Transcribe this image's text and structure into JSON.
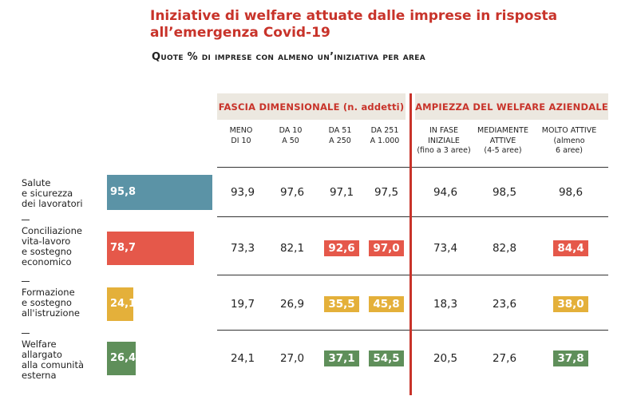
{
  "title": "Iniziative di welfare attuate dalle imprese in risposta all’emergenza Covid-19",
  "subtitle": "Quote % di imprese con almeno un’iniziativa per area",
  "groups": {
    "size": "FASCIA DIMENSIONALE (n. addetti)",
    "welfare": "AMPIEZZA DEL WELFARE AZIENDALE"
  },
  "columns": [
    [
      "MENO",
      "DI 10"
    ],
    [
      "DA 10",
      "A 50"
    ],
    [
      "DA 51",
      "A 250"
    ],
    [
      "DA 251",
      "A 1.000"
    ],
    [
      "IN FASE",
      "INIZIALE",
      "(fino a 3 aree)"
    ],
    [
      "MEDIAMENTE",
      "ATTIVE",
      "(4-5 aree)"
    ],
    [
      "MOLTO ATTIVE",
      "(almeno",
      "6 aree)"
    ]
  ],
  "colors": {
    "Salute e sicurezza dei lavoratori": "#5b93a6",
    "Conciliazione vita-lavoro e sostegno economico": "#e5584a",
    "Formazione e sostegno all'istruzione": "#e4b03a",
    "Welfare allargato alla comunità esterna": "#5f8f5a",
    "accent": "#c8332a",
    "header_bg": "#ece8e0"
  },
  "rows": [
    {
      "label": [
        "Salute",
        "e sicurezza",
        "dei lavoratori"
      ],
      "total": "95,8",
      "cells": [
        "93,9",
        "97,6",
        "97,1",
        "97,5",
        "94,6",
        "98,5",
        "98,6"
      ],
      "highlight": [
        false,
        false,
        false,
        false,
        false,
        false,
        false
      ]
    },
    {
      "label": [
        "Conciliazione",
        "vita-lavoro",
        "e sostegno",
        "economico"
      ],
      "total": "78,7",
      "cells": [
        "73,3",
        "82,1",
        "92,6",
        "97,0",
        "73,4",
        "82,8",
        "84,4"
      ],
      "highlight": [
        false,
        false,
        true,
        true,
        false,
        false,
        true
      ]
    },
    {
      "label": [
        "Formazione",
        "e sostegno",
        "all'istruzione"
      ],
      "total": "24,1",
      "cells": [
        "19,7",
        "26,9",
        "35,5",
        "45,8",
        "18,3",
        "23,6",
        "38,0"
      ],
      "highlight": [
        false,
        false,
        true,
        true,
        false,
        false,
        true
      ]
    },
    {
      "label": [
        "Welfare allargato",
        "alla comunità",
        "esterna"
      ],
      "total": "26,4",
      "cells": [
        "24,1",
        "27,0",
        "37,1",
        "54,5",
        "20,5",
        "27,6",
        "37,8"
      ],
      "highlight": [
        false,
        false,
        true,
        true,
        false,
        false,
        true
      ]
    }
  ],
  "chart_data": {
    "type": "table",
    "title": "Iniziative di welfare attuate dalle imprese in risposta all’emergenza Covid-19",
    "subtitle": "Quote % di imprese con almeno un’iniziativa per area",
    "categories": [
      "Salute e sicurezza dei lavoratori",
      "Conciliazione vita-lavoro e sostegno economico",
      "Formazione e sostegno all'istruzione",
      "Welfare allargato alla comunità esterna"
    ],
    "bar_values": [
      95.8,
      78.7,
      24.1,
      26.4
    ],
    "xlim": [
      0,
      100
    ],
    "series": [
      {
        "name": "MENO DI 10",
        "values": [
          93.9,
          73.3,
          19.7,
          24.1
        ]
      },
      {
        "name": "DA 10 A 50",
        "values": [
          97.6,
          82.1,
          26.9,
          27.0
        ]
      },
      {
        "name": "DA 51 A 250",
        "values": [
          97.1,
          92.6,
          35.5,
          37.1
        ]
      },
      {
        "name": "DA 251 A 1.000",
        "values": [
          97.5,
          97.0,
          45.8,
          54.5
        ]
      },
      {
        "name": "IN FASE INIZIALE (fino a 3 aree)",
        "values": [
          94.6,
          73.4,
          18.3,
          20.5
        ]
      },
      {
        "name": "MEDIAMENTE ATTIVE (4-5 aree)",
        "values": [
          98.5,
          82.8,
          23.6,
          27.6
        ]
      },
      {
        "name": "MOLTO ATTIVE (almeno 6 aree)",
        "values": [
          98.6,
          84.4,
          38.0,
          37.8
        ]
      }
    ]
  }
}
